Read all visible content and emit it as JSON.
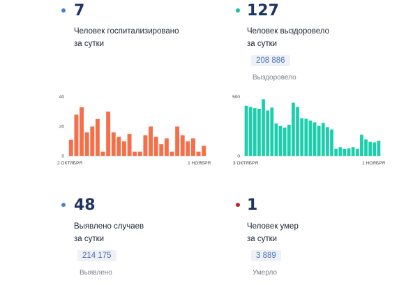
{
  "stats": {
    "hospitalized": {
      "value": "7",
      "line1": "Человек госпитализировано",
      "line2": "за сутки",
      "color": "#4a7fd0"
    },
    "recovered": {
      "value": "127",
      "line1": "Человек выздоровело",
      "line2": "за сутки",
      "total": "208 886",
      "total_label": "Выздоровело",
      "color": "#1bbfa4"
    },
    "cases": {
      "value": "48",
      "line1": "Выявлено случаев",
      "line2": "за сутки",
      "total": "214 175",
      "total_label": "Выявлено",
      "color": "#4a7fd0"
    },
    "deaths": {
      "value": "1",
      "line1": "Человек умер",
      "line2": "за сутки",
      "total": "3 889",
      "total_label": "Умерло",
      "color": "#c0242c"
    }
  },
  "chart_data": [
    {
      "type": "bar",
      "color": "#f4704a",
      "x_start_label": "2 ОКТЯБРЯ",
      "x_end_label": "1 НОЯБРЯ",
      "yticks": [
        "0",
        "20",
        "40"
      ],
      "ylim": [
        0,
        40
      ],
      "values": [
        11,
        28,
        33,
        16,
        20,
        25,
        3,
        30,
        16,
        13,
        10,
        15,
        3,
        3,
        14,
        20,
        13,
        8,
        12,
        3,
        20,
        14,
        10,
        12,
        3,
        7
      ]
    },
    {
      "type": "bar",
      "color": "#1bcfad",
      "x_start_label": "3 ОКТЯБРЯ",
      "x_end_label": "1 НОЯБРЯ",
      "yticks": [
        "0",
        "500"
      ],
      "ylim": [
        0,
        500
      ],
      "values": [
        425,
        415,
        405,
        400,
        480,
        385,
        410,
        275,
        255,
        240,
        265,
        450,
        415,
        320,
        315,
        300,
        285,
        255,
        280,
        245,
        225,
        60,
        75,
        60,
        65,
        75,
        60,
        180,
        140,
        120,
        115,
        130
      ]
    }
  ]
}
